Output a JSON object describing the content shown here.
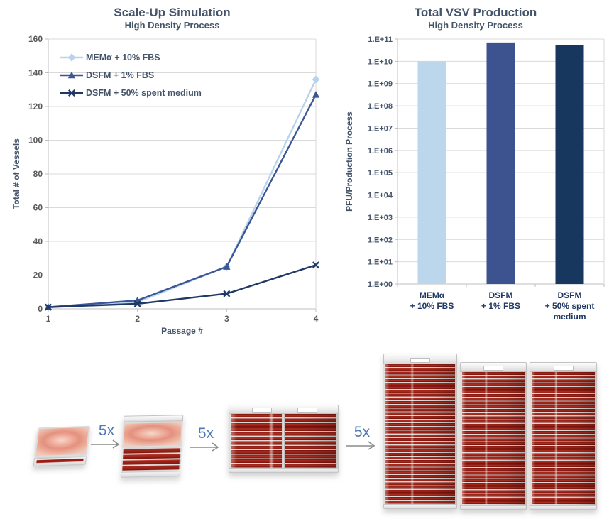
{
  "chart_data": [
    {
      "type": "line",
      "title": "Scale-Up Simulation",
      "subtitle": "High Density Process",
      "xlabel": "Passage #",
      "ylabel": "Total # of Vessels",
      "x": [
        1,
        2,
        3,
        4
      ],
      "xtick_labels": [
        "1",
        "2",
        "3",
        "4"
      ],
      "ylim": [
        0,
        160
      ],
      "ytick_step": 20,
      "ytick_labels": [
        "0",
        "20",
        "40",
        "60",
        "80",
        "100",
        "120",
        "140",
        "160"
      ],
      "grid": true,
      "legend_position": "inside-top-left",
      "series": [
        {
          "name": "MEMα + 10% FBS",
          "marker": "diamond",
          "color": "#b9d3ec",
          "values": [
            1,
            4,
            25,
            136
          ]
        },
        {
          "name": "DSFM + 1% FBS",
          "marker": "triangle",
          "color": "#3a5695",
          "values": [
            1,
            5,
            25,
            127
          ]
        },
        {
          "name": "DSFM + 50% spent medium",
          "marker": "x",
          "color": "#1f3864",
          "values": [
            1,
            3,
            9,
            26
          ]
        }
      ]
    },
    {
      "type": "bar",
      "title": "Total VSV Production",
      "subtitle": "High Density Process",
      "ylabel": "PFU/Production Process",
      "yscale": "log",
      "ylim": [
        1,
        100000000000.0
      ],
      "ytick_labels": [
        "1.E+00",
        "1.E+01",
        "1.E+02",
        "1.E+03",
        "1.E+04",
        "1.E+05",
        "1.E+06",
        "1.E+07",
        "1.E+08",
        "1.E+09",
        "1.E+10",
        "1.E+11"
      ],
      "grid": true,
      "categories": [
        [
          "MEMα",
          "+ 10% FBS"
        ],
        [
          "DSFM",
          "+ 1% FBS"
        ],
        [
          "DSFM",
          "+ 50% spent",
          "medium"
        ]
      ],
      "values": [
        10000000000.0,
        70000000000.0,
        55000000000.0
      ],
      "colors": [
        "#bcd6ec",
        "#3d538f",
        "#17375e"
      ]
    }
  ],
  "process": {
    "steps": [
      {
        "label": "5x"
      },
      {
        "label": "5x"
      },
      {
        "label": "5x"
      }
    ],
    "vessels": [
      {
        "kind": "single-layer tray",
        "layers": 1
      },
      {
        "kind": "5-layer stack",
        "layers": 5
      },
      {
        "kind": "double 12-layer stack",
        "layers": 12
      },
      {
        "kind": "40-layer tower",
        "layers": 40
      },
      {
        "kind": "40-layer tower",
        "layers": 40
      },
      {
        "kind": "40-layer tower",
        "layers": 40
      }
    ]
  },
  "style_colors": {
    "title": "#44546a",
    "tick": "#595959",
    "grid": "#d9d9d9",
    "axis": "#bfbfbf",
    "bar_tick": "#44546a",
    "category_label": "#1f3864",
    "legend_text": "#44546a",
    "arrow_label": "#4d79b6",
    "arrow": "#8a8a8a"
  }
}
